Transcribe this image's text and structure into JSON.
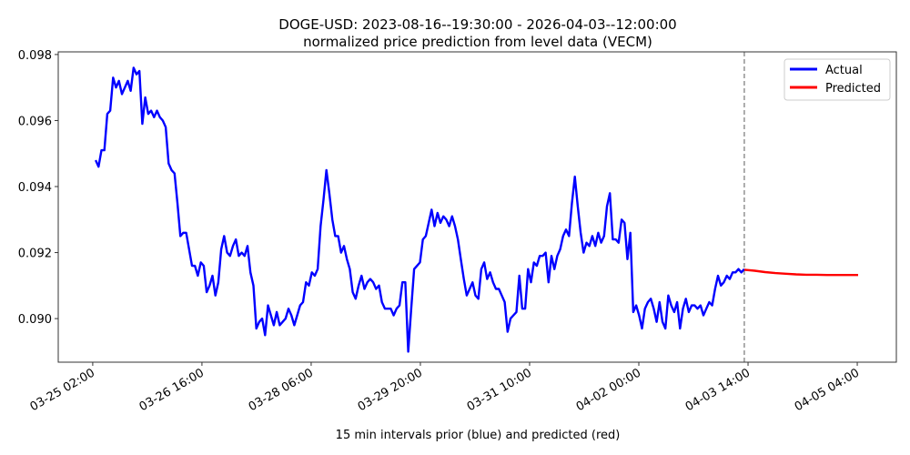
{
  "chart_data": {
    "type": "line",
    "title": "DOGE-USD: 2023-08-16--19:30:00 - 2026-04-03--12:00:00",
    "subtitle": "normalized price prediction from level data (VECM)",
    "xlabel": "15 min intervals prior (blue) and predicted (red)",
    "ylabel": "",
    "x_units": "hours since 03-25 02:00",
    "xlim": [
      -12,
      279.6
    ],
    "ylim": [
      0.08868,
      0.09808
    ],
    "xticks": [
      {
        "value": 0,
        "label": "03-25 02:00"
      },
      {
        "value": 38,
        "label": "03-26 16:00"
      },
      {
        "value": 76,
        "label": "03-28 06:00"
      },
      {
        "value": 114,
        "label": "03-29 20:00"
      },
      {
        "value": 152,
        "label": "03-31 10:00"
      },
      {
        "value": 190,
        "label": "04-02 00:00"
      },
      {
        "value": 228,
        "label": "04-03 14:00"
      },
      {
        "value": 266,
        "label": "04-05 04:00"
      }
    ],
    "yticks": [
      {
        "value": 0.09,
        "label": "0.090"
      },
      {
        "value": 0.092,
        "label": "0.092"
      },
      {
        "value": 0.094,
        "label": "0.094"
      },
      {
        "value": 0.096,
        "label": "0.096"
      },
      {
        "value": 0.098,
        "label": "0.098"
      }
    ],
    "divider_x": 226.7,
    "legend": {
      "position": "top-right",
      "entries": [
        "Actual",
        "Predicted"
      ]
    },
    "series": [
      {
        "name": "Actual",
        "color": "#0000ff",
        "x_start": 1.0,
        "x_end": 226.7,
        "values": [
          0.0948,
          0.0946,
          0.0951,
          0.0951,
          0.0962,
          0.0963,
          0.0973,
          0.097,
          0.0972,
          0.0968,
          0.097,
          0.0972,
          0.0969,
          0.0976,
          0.0974,
          0.0975,
          0.0959,
          0.0967,
          0.0962,
          0.0963,
          0.0961,
          0.0963,
          0.0961,
          0.096,
          0.0958,
          0.0947,
          0.0945,
          0.0944,
          0.0935,
          0.0925,
          0.0926,
          0.0926,
          0.0921,
          0.0916,
          0.0916,
          0.0913,
          0.0917,
          0.0916,
          0.0908,
          0.091,
          0.0913,
          0.0907,
          0.0911,
          0.0921,
          0.0925,
          0.092,
          0.0919,
          0.0922,
          0.0924,
          0.0919,
          0.092,
          0.0919,
          0.0922,
          0.0914,
          0.091,
          0.0897,
          0.0899,
          0.09,
          0.0895,
          0.0904,
          0.0901,
          0.0898,
          0.0902,
          0.0898,
          0.0899,
          0.09,
          0.0903,
          0.0901,
          0.0898,
          0.0901,
          0.0904,
          0.0905,
          0.0911,
          0.091,
          0.0914,
          0.0913,
          0.0915,
          0.0928,
          0.0936,
          0.0945,
          0.0938,
          0.093,
          0.0925,
          0.0925,
          0.092,
          0.0922,
          0.0918,
          0.0915,
          0.0908,
          0.0906,
          0.091,
          0.0913,
          0.0909,
          0.0911,
          0.0912,
          0.0911,
          0.0909,
          0.091,
          0.0905,
          0.0903,
          0.0903,
          0.0903,
          0.0901,
          0.0903,
          0.0904,
          0.0911,
          0.0911,
          0.089,
          0.0903,
          0.0915,
          0.0916,
          0.0917,
          0.0924,
          0.0925,
          0.0929,
          0.0933,
          0.0928,
          0.0932,
          0.0929,
          0.0931,
          0.093,
          0.0928,
          0.0931,
          0.0928,
          0.0924,
          0.0918,
          0.0912,
          0.0907,
          0.0909,
          0.0911,
          0.0907,
          0.0906,
          0.0915,
          0.0917,
          0.0912,
          0.0914,
          0.0911,
          0.0909,
          0.0909,
          0.0907,
          0.0905,
          0.0896,
          0.09,
          0.0901,
          0.0902,
          0.0913,
          0.0903,
          0.0903,
          0.0915,
          0.0911,
          0.0917,
          0.0916,
          0.0919,
          0.0919,
          0.092,
          0.0911,
          0.0919,
          0.0915,
          0.0919,
          0.0921,
          0.0925,
          0.0927,
          0.0925,
          0.0935,
          0.0943,
          0.0934,
          0.0926,
          0.092,
          0.0923,
          0.0922,
          0.0925,
          0.0922,
          0.0926,
          0.0923,
          0.0925,
          0.0934,
          0.0938,
          0.0924,
          0.0924,
          0.0923,
          0.093,
          0.0929,
          0.0918,
          0.0926,
          0.0902,
          0.0904,
          0.0901,
          0.0897,
          0.0903,
          0.0905,
          0.0906,
          0.0903,
          0.0899,
          0.0905,
          0.0899,
          0.0897,
          0.0907,
          0.0904,
          0.0902,
          0.0905,
          0.0897,
          0.0903,
          0.0906,
          0.0902,
          0.0904,
          0.0904,
          0.0903,
          0.0904,
          0.0901,
          0.0903,
          0.0905,
          0.0904,
          0.0909,
          0.0913,
          0.091,
          0.0911,
          0.0913,
          0.0912,
          0.0914,
          0.0914,
          0.0915,
          0.0914,
          0.0915
        ]
      },
      {
        "name": "Predicted",
        "color": "#ff0000",
        "x_start": 226.7,
        "x_end": 266.3,
        "values": [
          0.09148,
          0.09145,
          0.09141,
          0.09138,
          0.09136,
          0.09134,
          0.09133,
          0.09133,
          0.09132,
          0.09132,
          0.09132,
          0.09132
        ]
      }
    ]
  }
}
